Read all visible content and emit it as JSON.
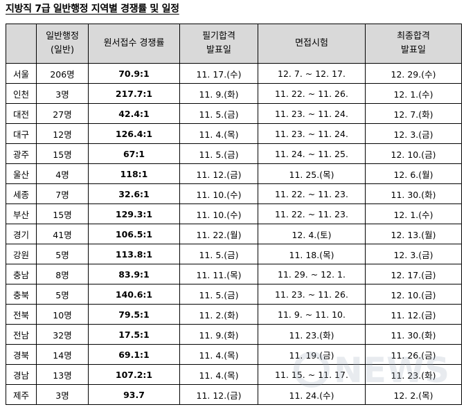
{
  "title": "지방직 7급 일반행정 지역별 경쟁률 및 일정",
  "columns": {
    "region": "",
    "count_line1": "일반행정",
    "count_line2": "(일반)",
    "rate": "원서접수 경쟁률",
    "written_line1": "필기합격",
    "written_line2": "발표일",
    "interview": "면접시험",
    "final_line1": "최종합격",
    "final_line2": "발표일"
  },
  "rows": [
    {
      "region": "서울",
      "count": "206명",
      "rate": "70.9:1",
      "written": "11. 17.(수)",
      "interview": "12. 7. ~ 12. 17.",
      "final": "12. 29.(수)"
    },
    {
      "region": "인천",
      "count": "3명",
      "rate": "217.7:1",
      "written": "11. 9.(화)",
      "interview": "11. 22. ~ 11. 26.",
      "final": "12. 1.(수)"
    },
    {
      "region": "대전",
      "count": "27명",
      "rate": "42.4:1",
      "written": "11. 5.(금)",
      "interview": "11. 23. ~ 11. 24.",
      "final": "12. 7.(화)"
    },
    {
      "region": "대구",
      "count": "12명",
      "rate": "126.4:1",
      "written": "11. 4.(목)",
      "interview": "11. 23. ~ 11. 24.",
      "final": "12. 3.(금)"
    },
    {
      "region": "광주",
      "count": "15명",
      "rate": "67:1",
      "written": "11. 5.(금)",
      "interview": "11. 24. ~ 11. 25.",
      "final": "12. 10.(금)"
    },
    {
      "region": "울산",
      "count": "4명",
      "rate": "118:1",
      "written": "11. 12.(금)",
      "interview": "11. 25.(목)",
      "final": "12. 6.(월)"
    },
    {
      "region": "세종",
      "count": "7명",
      "rate": "32.6:1",
      "written": "11. 10.(수)",
      "interview": "11. 22. ~ 11. 23.",
      "final": "11. 30.(화)"
    },
    {
      "region": "부산",
      "count": "15명",
      "rate": "129.3:1",
      "written": "11. 10.(수)",
      "interview": "11. 22. ~ 11. 23.",
      "final": "12. 1.(수)"
    },
    {
      "region": "경기",
      "count": "41명",
      "rate": "106.5:1",
      "written": "11. 22.(월)",
      "interview": "12. 4.(토)",
      "final": "12. 13.(월)"
    },
    {
      "region": "강원",
      "count": "5명",
      "rate": "113.8:1",
      "written": "11. 5.(금)",
      "interview": "11. 18.(목)",
      "final": "12. 3.(금)"
    },
    {
      "region": "충남",
      "count": "8명",
      "rate": "83.9:1",
      "written": "11. 11.(목)",
      "interview": "11. 29. ~ 12. 1.",
      "final": "12. 17.(금)"
    },
    {
      "region": "충북",
      "count": "5명",
      "rate": "140.6:1",
      "written": "11. 5.(금)",
      "interview": "11. 23. ~ 11. 26.",
      "final": "12. 10.(금)"
    },
    {
      "region": "전북",
      "count": "10명",
      "rate": "79.5:1",
      "written": "11. 2.(화)",
      "interview": "11. 9. ~ 11. 10.",
      "final": "11. 12.(금)"
    },
    {
      "region": "전남",
      "count": "32명",
      "rate": "17.5:1",
      "written": "11. 9.(화)",
      "interview": "11. 23.(화)",
      "final": "11. 30.(화)"
    },
    {
      "region": "경북",
      "count": "14명",
      "rate": "69.1:1",
      "written": "11. 4.(목)",
      "interview": "11. 19.(금)",
      "final": "11. 26.(금)"
    },
    {
      "region": "경남",
      "count": "13명",
      "rate": "107.2:1",
      "written": "11. 4.(목)",
      "interview": "11. 15. ~ 11. 17.",
      "final": "11. 23.(화)"
    },
    {
      "region": "제주",
      "count": "3명",
      "rate": "93.7",
      "written": "11. 12.(금)",
      "interview": "11. 24.(수)",
      "final": "12. 2.(목)"
    }
  ],
  "watermark": {
    "text": "NEWS",
    "color": "#9aa8b8"
  }
}
